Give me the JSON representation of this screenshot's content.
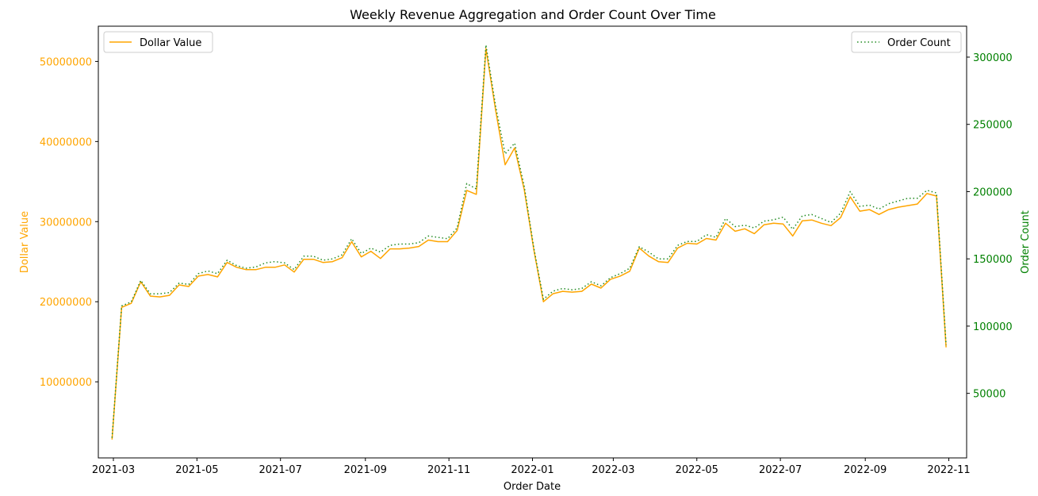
{
  "chart_data": {
    "type": "line",
    "title": "Weekly Revenue Aggregation and Order Count Over Time",
    "xlabel": "Order Date",
    "y_left_label": "Dollar Value",
    "y_right_label": "Order Count",
    "x_ticks": [
      "2021-03",
      "2021-05",
      "2021-07",
      "2021-09",
      "2021-11",
      "2022-01",
      "2022-03",
      "2022-05",
      "2022-07",
      "2022-09",
      "2022-11"
    ],
    "x_range": [
      "2021-02-18",
      "2022-11-14"
    ],
    "y_left_ticks": [
      "10000000",
      "20000000",
      "30000000",
      "40000000",
      "50000000"
    ],
    "y_left_range": [
      500000,
      54400000
    ],
    "y_right_ticks": [
      "50000",
      "100000",
      "150000",
      "200000",
      "250000",
      "300000"
    ],
    "y_right_range": [
      2000,
      323000
    ],
    "legend_left": {
      "label": "Dollar Value",
      "placement": "upper left"
    },
    "legend_right": {
      "label": "Order Count",
      "placement": "upper right"
    },
    "colors": {
      "dollar": "#FFA500",
      "order": "#228B22",
      "axis_left": "#FFA500",
      "axis_right": "#008000"
    },
    "grid": false,
    "series": [
      {
        "name": "Dollar Value",
        "axis": "left",
        "style": "solid",
        "x": [
          "2021-02-28",
          "2021-03-07",
          "2021-03-14",
          "2021-03-21",
          "2021-03-28",
          "2021-04-04",
          "2021-04-11",
          "2021-04-18",
          "2021-04-25",
          "2021-05-02",
          "2021-05-09",
          "2021-05-16",
          "2021-05-23",
          "2021-05-30",
          "2021-06-06",
          "2021-06-13",
          "2021-06-20",
          "2021-06-27",
          "2021-07-04",
          "2021-07-11",
          "2021-07-18",
          "2021-07-25",
          "2021-08-01",
          "2021-08-08",
          "2021-08-15",
          "2021-08-22",
          "2021-08-29",
          "2021-09-05",
          "2021-09-12",
          "2021-09-19",
          "2021-09-26",
          "2021-10-03",
          "2021-10-10",
          "2021-10-17",
          "2021-10-24",
          "2021-10-31",
          "2021-11-07",
          "2021-11-14",
          "2021-11-21",
          "2021-11-28",
          "2021-12-05",
          "2021-12-12",
          "2021-12-19",
          "2021-12-26",
          "2022-01-02",
          "2022-01-09",
          "2022-01-16",
          "2022-01-23",
          "2022-01-30",
          "2022-02-06",
          "2022-02-13",
          "2022-02-20",
          "2022-02-27",
          "2022-03-06",
          "2022-03-13",
          "2022-03-20",
          "2022-03-27",
          "2022-04-03",
          "2022-04-10",
          "2022-04-17",
          "2022-04-24",
          "2022-05-01",
          "2022-05-08",
          "2022-05-15",
          "2022-05-22",
          "2022-05-29",
          "2022-06-05",
          "2022-06-12",
          "2022-06-19",
          "2022-06-26",
          "2022-07-03",
          "2022-07-10",
          "2022-07-17",
          "2022-07-24",
          "2022-07-31",
          "2022-08-07",
          "2022-08-14",
          "2022-08-21",
          "2022-08-28",
          "2022-09-04",
          "2022-09-11",
          "2022-09-18",
          "2022-09-25",
          "2022-10-02",
          "2022-10-09",
          "2022-10-16",
          "2022-10-23",
          "2022-10-30"
        ],
        "values": [
          2800000,
          19300000,
          19800000,
          22500000,
          20700000,
          20600000,
          20800000,
          22100000,
          21900000,
          23200000,
          23400000,
          23100000,
          24900000,
          24300000,
          24000000,
          24000000,
          24300000,
          24300000,
          24600000,
          23700000,
          25300000,
          25300000,
          24900000,
          25000000,
          25500000,
          27500000,
          25600000,
          26300000,
          25400000,
          26600000,
          26600000,
          26700000,
          26900000,
          27700000,
          27500000,
          27500000,
          28900000,
          33900000,
          33400000,
          51600000,
          44000000,
          37100000,
          39200000,
          34000000,
          26500000,
          20000000,
          21000000,
          21300000,
          21200000,
          21300000,
          22200000,
          21700000,
          22800000,
          23200000,
          23800000,
          26700000,
          25700000,
          25000000,
          24900000,
          26700000,
          27300000,
          27200000,
          27900000,
          27700000,
          29800000,
          28800000,
          29100000,
          28500000,
          29600000,
          29800000,
          29700000,
          28200000,
          30100000,
          30200000,
          29800000,
          29500000,
          30500000,
          33100000,
          31300000,
          31500000,
          30900000,
          31500000,
          31800000,
          32000000,
          32200000,
          33500000,
          33200000,
          14300000
        ]
      },
      {
        "name": "Order Count",
        "axis": "right",
        "style": "dotted",
        "x": [
          "2021-02-28",
          "2021-03-07",
          "2021-03-14",
          "2021-03-21",
          "2021-03-28",
          "2021-04-04",
          "2021-04-11",
          "2021-04-18",
          "2021-04-25",
          "2021-05-02",
          "2021-05-09",
          "2021-05-16",
          "2021-05-23",
          "2021-05-30",
          "2021-06-06",
          "2021-06-13",
          "2021-06-20",
          "2021-06-27",
          "2021-07-04",
          "2021-07-11",
          "2021-07-18",
          "2021-07-25",
          "2021-08-01",
          "2021-08-08",
          "2021-08-15",
          "2021-08-22",
          "2021-08-29",
          "2021-09-05",
          "2021-09-12",
          "2021-09-19",
          "2021-09-26",
          "2021-10-03",
          "2021-10-10",
          "2021-10-17",
          "2021-10-24",
          "2021-10-31",
          "2021-11-07",
          "2021-11-14",
          "2021-11-21",
          "2021-11-28",
          "2021-12-05",
          "2021-12-12",
          "2021-12-19",
          "2021-12-26",
          "2022-01-02",
          "2022-01-09",
          "2022-01-16",
          "2022-01-23",
          "2022-01-30",
          "2022-02-06",
          "2022-02-13",
          "2022-02-20",
          "2022-02-27",
          "2022-03-06",
          "2022-03-13",
          "2022-03-20",
          "2022-03-27",
          "2022-04-03",
          "2022-04-10",
          "2022-04-17",
          "2022-04-24",
          "2022-05-01",
          "2022-05-08",
          "2022-05-15",
          "2022-05-22",
          "2022-05-29",
          "2022-06-05",
          "2022-06-12",
          "2022-06-19",
          "2022-06-26",
          "2022-07-03",
          "2022-07-10",
          "2022-07-17",
          "2022-07-24",
          "2022-07-31",
          "2022-08-07",
          "2022-08-14",
          "2022-08-21",
          "2022-08-28",
          "2022-09-04",
          "2022-09-11",
          "2022-09-18",
          "2022-09-25",
          "2022-10-02",
          "2022-10-09",
          "2022-10-16",
          "2022-10-23",
          "2022-10-30"
        ],
        "values": [
          17000,
          115000,
          118000,
          134000,
          124000,
          124000,
          125000,
          132000,
          131000,
          139000,
          141000,
          139000,
          149000,
          145000,
          143000,
          144000,
          147000,
          148000,
          147000,
          142000,
          152000,
          152000,
          149000,
          150000,
          153000,
          165000,
          154000,
          158000,
          155000,
          160000,
          161000,
          161000,
          162000,
          167000,
          166000,
          165000,
          173000,
          206000,
          202000,
          309000,
          264000,
          228000,
          236000,
          204000,
          158000,
          120000,
          126000,
          128000,
          127000,
          128000,
          133000,
          130000,
          136000,
          139000,
          143000,
          159000,
          155000,
          150000,
          150000,
          160000,
          163000,
          163000,
          168000,
          166000,
          180000,
          174000,
          175000,
          173000,
          178000,
          179000,
          181000,
          172000,
          182000,
          183000,
          180000,
          177000,
          184000,
          200000,
          189000,
          190000,
          187000,
          191000,
          193000,
          195000,
          195000,
          201000,
          199000,
          86000
        ]
      }
    ]
  }
}
